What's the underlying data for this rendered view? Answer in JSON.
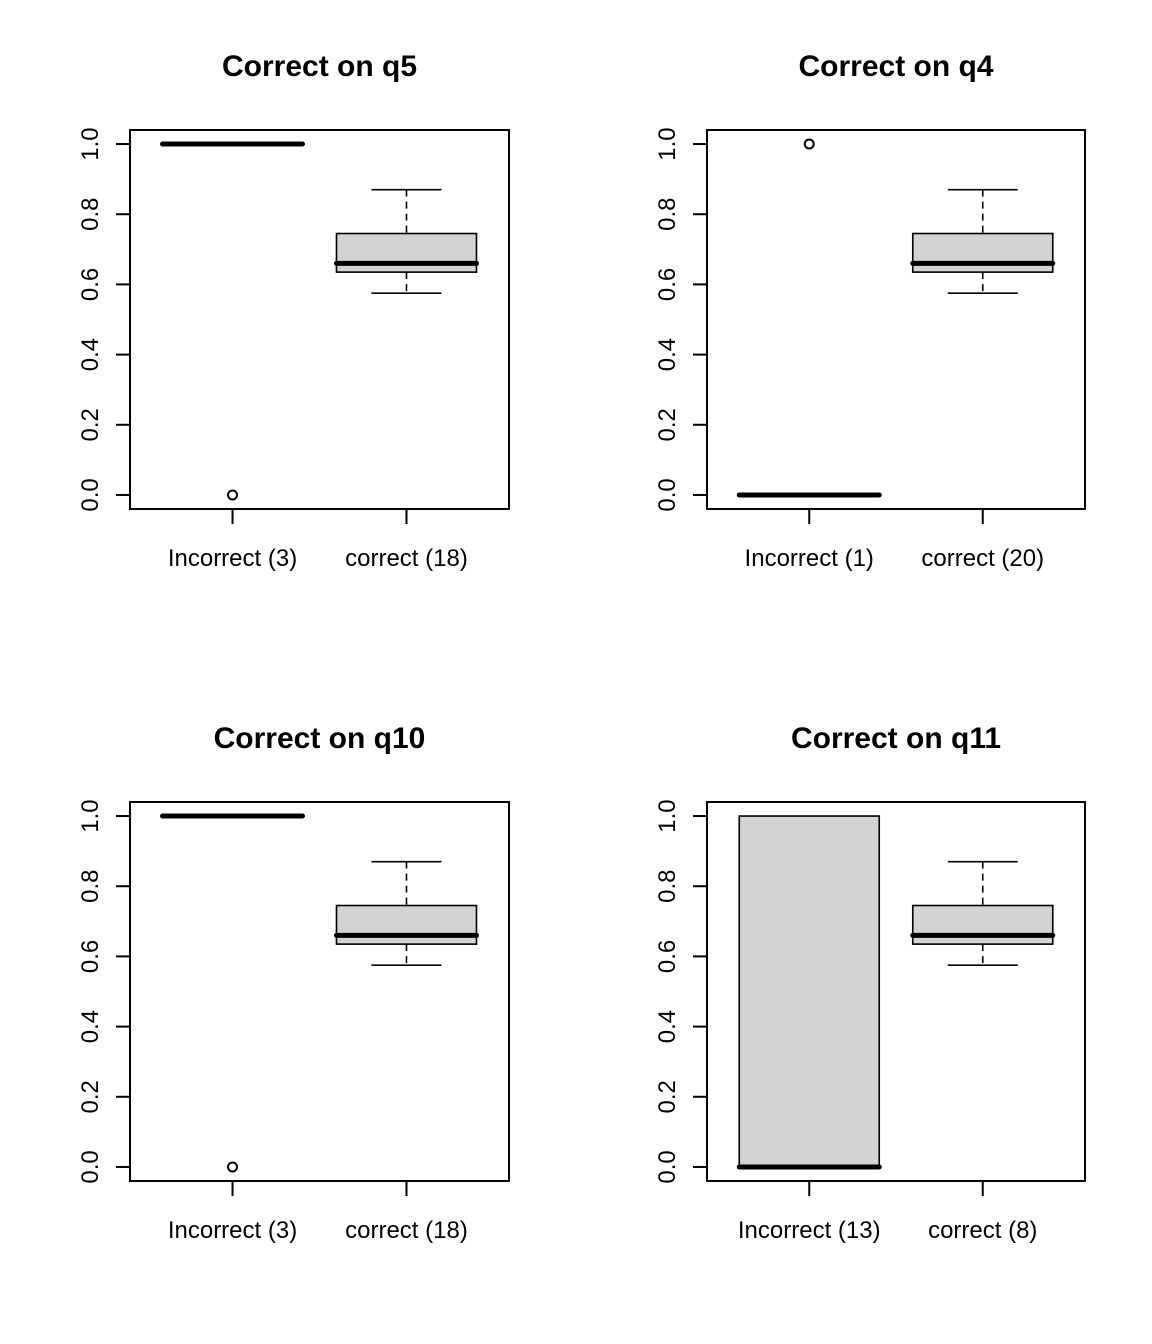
{
  "chart_data": [
    {
      "type": "box",
      "title": "Correct on q5",
      "categories": [
        "Incorrect (3)",
        "correct (18)"
      ],
      "ylim": [
        -0.04,
        1.04
      ],
      "yticks": [
        0.0,
        0.2,
        0.4,
        0.6,
        0.8,
        1.0
      ],
      "ytick_labels": [
        "0.0",
        "0.2",
        "0.4",
        "0.6",
        "0.8",
        "1.0"
      ],
      "boxes": [
        {
          "min": 1.0,
          "q1": 1.0,
          "median": 1.0,
          "q3": 1.0,
          "max": 1.0,
          "outliers": [
            0.0
          ]
        },
        {
          "min": 0.575,
          "q1": 0.635,
          "median": 0.66,
          "q3": 0.745,
          "max": 0.87,
          "outliers": []
        }
      ],
      "grid": false
    },
    {
      "type": "box",
      "title": "Correct on q4",
      "categories": [
        "Incorrect (1)",
        "correct (20)"
      ],
      "ylim": [
        -0.04,
        1.04
      ],
      "yticks": [
        0.0,
        0.2,
        0.4,
        0.6,
        0.8,
        1.0
      ],
      "ytick_labels": [
        "0.0",
        "0.2",
        "0.4",
        "0.6",
        "0.8",
        "1.0"
      ],
      "boxes": [
        {
          "min": 0.0,
          "q1": 0.0,
          "median": 0.0,
          "q3": 0.0,
          "max": 0.0,
          "outliers": [
            1.0
          ]
        },
        {
          "min": 0.575,
          "q1": 0.635,
          "median": 0.66,
          "q3": 0.745,
          "max": 0.87,
          "outliers": []
        }
      ],
      "grid": false
    },
    {
      "type": "box",
      "title": "Correct on q10",
      "categories": [
        "Incorrect (3)",
        "correct (18)"
      ],
      "ylim": [
        -0.04,
        1.04
      ],
      "yticks": [
        0.0,
        0.2,
        0.4,
        0.6,
        0.8,
        1.0
      ],
      "ytick_labels": [
        "0.0",
        "0.2",
        "0.4",
        "0.6",
        "0.8",
        "1.0"
      ],
      "boxes": [
        {
          "min": 1.0,
          "q1": 1.0,
          "median": 1.0,
          "q3": 1.0,
          "max": 1.0,
          "outliers": [
            0.0
          ]
        },
        {
          "min": 0.575,
          "q1": 0.635,
          "median": 0.66,
          "q3": 0.745,
          "max": 0.87,
          "outliers": []
        }
      ],
      "grid": false
    },
    {
      "type": "box",
      "title": "Correct on q11",
      "categories": [
        "Incorrect (13)",
        "correct (8)"
      ],
      "ylim": [
        -0.04,
        1.04
      ],
      "yticks": [
        0.0,
        0.2,
        0.4,
        0.6,
        0.8,
        1.0
      ],
      "ytick_labels": [
        "0.0",
        "0.2",
        "0.4",
        "0.6",
        "0.8",
        "1.0"
      ],
      "boxes": [
        {
          "min": 0.0,
          "q1": 0.0,
          "median": 0.0,
          "q3": 1.0,
          "max": 1.0,
          "outliers": []
        },
        {
          "min": 0.575,
          "q1": 0.635,
          "median": 0.66,
          "q3": 0.745,
          "max": 0.87,
          "outliers": []
        }
      ],
      "grid": false
    }
  ],
  "colors": {
    "box_fill": "#d3d3d3",
    "line": "#000000",
    "background": "#ffffff"
  }
}
